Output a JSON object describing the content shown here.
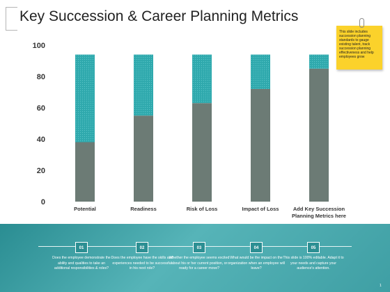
{
  "page": {
    "title": "Key Succession & Career Planning Metrics",
    "note_text": "This slide includes succession planning standards to gauge existing talent, track succession planning effectiveness and help employees grow",
    "note_color": "#fbd22b",
    "page_number": "1"
  },
  "colors": {
    "bar_base": "#6c7b75",
    "bar_top": "#2fa9ad",
    "band": "#3f9fa4"
  },
  "chart_data": {
    "type": "bar",
    "stacked": true,
    "categories": [
      "Potential",
      "Readiness",
      "Risk of Loss",
      "Impact of Loss",
      "Add Key Succession Planning Metrics here"
    ],
    "series": [
      {
        "values": [
          38,
          55,
          63,
          72,
          85
        ]
      },
      {
        "values": [
          56,
          39,
          31,
          22,
          9
        ]
      }
    ],
    "ylim": [
      0,
      100
    ],
    "yticks": [
      0,
      20,
      40,
      60,
      80,
      100
    ],
    "title": "",
    "xlabel": "",
    "ylabel": "",
    "grid": false,
    "legend": "none"
  },
  "steps": [
    {
      "number": "01",
      "text": "Does the employee demonstrate the ability and qualities to take an additional responsibilities & roles?"
    },
    {
      "number": "02",
      "text": "Does the employee have the skills and experiences needed to be successful in his next role?"
    },
    {
      "number": "03",
      "text": "Whether the employee seems excited about his or her current position, or ready for a career move?"
    },
    {
      "number": "04",
      "text": "What would be the impact on the organization when an employee will leave?"
    },
    {
      "number": "05",
      "text": "This slide is 100% editable. Adapt it to your needs and capture your audience's attention."
    }
  ]
}
